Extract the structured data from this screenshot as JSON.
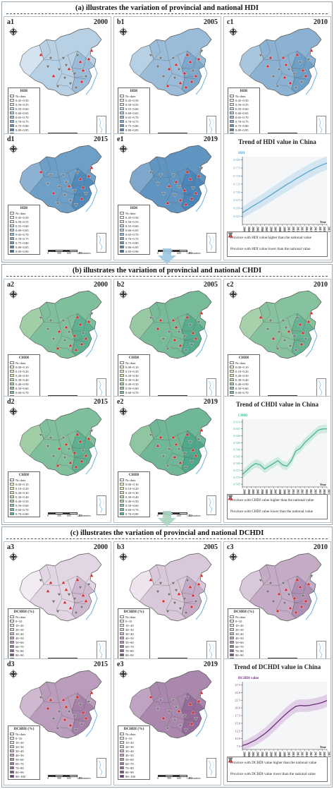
{
  "sections": [
    {
      "title": "(a) illustrates the variation of provincial and national HDI",
      "legend_title": "HDI",
      "legend_items": [
        "No data",
        "0.45~0.50",
        "0.50~0.55",
        "0.55~0.60",
        "0.60~0.65",
        "0.65~0.70",
        "0.70~0.75",
        "0.75~0.80",
        "0.80~0.85",
        "0.85~0.90"
      ],
      "panels": [
        {
          "label": "a1",
          "year": "2000"
        },
        {
          "label": "b1",
          "year": "2005"
        },
        {
          "label": "c1",
          "year": "2010"
        },
        {
          "label": "d1",
          "year": "2015"
        },
        {
          "label": "e1",
          "year": "2019"
        }
      ],
      "colors": {
        "fill": "#9ec1dd",
        "dark": "#4a86b8",
        "light": "#dbe8f2",
        "line": "#5aa4cf",
        "band": "#cde3f1",
        "legend": [
          "#ffffff",
          "#eef4f8",
          "#dde9f2",
          "#c8dcea",
          "#b0cde2",
          "#98bdd9",
          "#7eabcf",
          "#6599c3",
          "#4d86b6",
          "#3670a4"
        ]
      },
      "map_shades": [
        0.25,
        0.45,
        0.55,
        0.75,
        0.85
      ],
      "chart_title": "Trend of HDI value in China",
      "legend_high": "Province with HDI value higher than the national value",
      "legend_low": "Province with HDI value lower than the national value"
    },
    {
      "title": "(b) illustrates the variation of provincial and national CHDI",
      "legend_title": "CHDI",
      "legend_items": [
        "No data",
        "0.00~0.10",
        "0.10~0.20",
        "0.20~0.30",
        "0.30~0.40",
        "0.40~0.50",
        "0.50~0.60",
        "0.60~0.70",
        "0.70~0.80"
      ],
      "panels": [
        {
          "label": "a2",
          "year": "2000"
        },
        {
          "label": "b2",
          "year": "2005"
        },
        {
          "label": "c2",
          "year": "2010"
        },
        {
          "label": "d2",
          "year": "2015"
        },
        {
          "label": "e2",
          "year": "2019"
        }
      ],
      "colors": {
        "fill": "#9ccfba",
        "dark": "#4fa88a",
        "light": "#eef3c4",
        "line": "#44b596",
        "band": "#c9e8dc",
        "legend": [
          "#ffffff",
          "#f7f6cf",
          "#e8f0b8",
          "#d4e8ae",
          "#bfe0aa",
          "#a6d6a8",
          "#8ccba6",
          "#72bfa2",
          "#58b39c"
        ]
      },
      "map_shades": [
        0.7,
        0.75,
        0.65,
        0.7,
        0.8
      ],
      "chart_title": "Trend of CHDI value in China",
      "legend_high": "Province with CHDI value higher than the national value",
      "legend_low": "Province with CHDI value lower than the national value"
    },
    {
      "title": "(c) illustrates the variation of provincial and national DCHDI",
      "legend_title": "DCHDI (%)",
      "legend_items": [
        "No data",
        "0~10",
        "10~20",
        "20~30",
        "30~40",
        "40~50",
        "50~60",
        "60~70",
        "70~80",
        "80~90",
        "90~100"
      ],
      "panels": [
        {
          "label": "a3",
          "year": "2000"
        },
        {
          "label": "b3",
          "year": "2005"
        },
        {
          "label": "c3",
          "year": "2010"
        },
        {
          "label": "d3",
          "year": "2015"
        },
        {
          "label": "e3",
          "year": "2019"
        }
      ],
      "colors": {
        "fill": "#c9aacb",
        "dark": "#8b5d8f",
        "light": "#f3ebf3",
        "line": "#6a2e7a",
        "band": "#dcc8e4",
        "legend": [
          "#ffffff",
          "#f6eff6",
          "#ecdfec",
          "#e0cde0",
          "#d3bad4",
          "#c4a6c6",
          "#b490b7",
          "#a27ba7",
          "#8f6596",
          "#7b5084",
          "#663b71"
        ]
      },
      "map_shades": [
        0.15,
        0.25,
        0.45,
        0.55,
        0.7
      ],
      "chart_title": "Trend of DCHDI value in China",
      "legend_high": "Province with DCHDI value higher than the national value",
      "legend_low": "Province with DCHDI value lower than the national value"
    }
  ],
  "scale": {
    "labels": [
      "0",
      "300",
      "600",
      "1200"
    ],
    "unit": "Kilometers"
  },
  "chart_data": [
    {
      "type": "line",
      "title": "Trend of HDI value in China",
      "ylabel": "HDI",
      "xlabel": "Year",
      "x": [
        "2000",
        "2001",
        "2002",
        "2003",
        "2004",
        "2005",
        "2006",
        "2007",
        "2008",
        "2009",
        "2010",
        "2011",
        "2012",
        "2013",
        "2014",
        "2015",
        "2016",
        "2017",
        "2018",
        "2019"
      ],
      "yticks": [
        "0.625",
        "0.650",
        "0.675",
        "0.700",
        "0.725",
        "0.750",
        "0.775",
        "0.800"
      ],
      "ylim": [
        0.6,
        0.81
      ],
      "series": [
        {
          "values": [
            0.636,
            0.645,
            0.654,
            0.662,
            0.67,
            0.679,
            0.688,
            0.697,
            0.706,
            0.715,
            0.724,
            0.732,
            0.741,
            0.749,
            0.757,
            0.765,
            0.772,
            0.779,
            0.785,
            0.79
          ]
        }
      ],
      "band": [
        0.018,
        0.018,
        0.019,
        0.019,
        0.02,
        0.02,
        0.021,
        0.021,
        0.021,
        0.022,
        0.022,
        0.022,
        0.022,
        0.022,
        0.022,
        0.022,
        0.022,
        0.021,
        0.021,
        0.021
      ]
    },
    {
      "type": "line",
      "title": "Trend of CHDI value in China",
      "ylabel": "CHDI",
      "xlabel": "Year",
      "x": [
        "2000",
        "2001",
        "2002",
        "2003",
        "2004",
        "2005",
        "2006",
        "2007",
        "2008",
        "2009",
        "2010",
        "2011",
        "2012",
        "2013",
        "2014",
        "2015",
        "2016",
        "2017",
        "2018",
        "2019"
      ],
      "yticks": [
        "0.565",
        "0.570",
        "0.575",
        "0.580",
        "0.585",
        "0.590",
        "0.595",
        "0.600",
        "0.605",
        "0.610"
      ],
      "ylim": [
        0.563,
        0.612
      ],
      "series": [
        {
          "values": [
            0.572,
            0.575,
            0.578,
            0.58,
            0.579,
            0.576,
            0.578,
            0.58,
            0.582,
            0.579,
            0.578,
            0.582,
            0.589,
            0.591,
            0.595,
            0.598,
            0.601,
            0.604,
            0.605,
            0.605
          ]
        }
      ],
      "band": [
        0.003,
        0.003,
        0.003,
        0.003,
        0.003,
        0.003,
        0.003,
        0.003,
        0.003,
        0.003,
        0.003,
        0.003,
        0.003,
        0.003,
        0.003,
        0.003,
        0.003,
        0.003,
        0.003,
        0.003
      ]
    },
    {
      "type": "line",
      "title": "Trend of DCHDI value in China",
      "ylabel": "DCHDI value",
      "xlabel": "Year",
      "x": [
        "2000",
        "2001",
        "2002",
        "2003",
        "2004",
        "2005",
        "2006",
        "2007",
        "2008",
        "2009",
        "2010",
        "2011",
        "2012",
        "2013",
        "2014",
        "2015",
        "2016",
        "2017",
        "2018",
        "2019"
      ],
      "yticks": [
        "7.5",
        "10.0",
        "12.5",
        "15.0",
        "17.5",
        "20.0",
        "22.5",
        "25.0",
        "27.5"
      ],
      "ylim": [
        6.5,
        28.5
      ],
      "series": [
        {
          "values": [
            7.8,
            8.2,
            8.9,
            9.6,
            10.6,
            11.6,
            12.8,
            14.2,
            15.6,
            17.0,
            18.3,
            19.5,
            20.5,
            20.8,
            20.7,
            20.8,
            21.1,
            21.4,
            21.8,
            22.4
          ]
        }
      ],
      "band": [
        1.4,
        1.5,
        1.6,
        1.7,
        1.8,
        1.9,
        2.0,
        2.0,
        2.0,
        2.0,
        2.0,
        2.0,
        2.0,
        2.0,
        2.0,
        2.0,
        2.0,
        2.0,
        2.0,
        2.0
      ]
    }
  ]
}
